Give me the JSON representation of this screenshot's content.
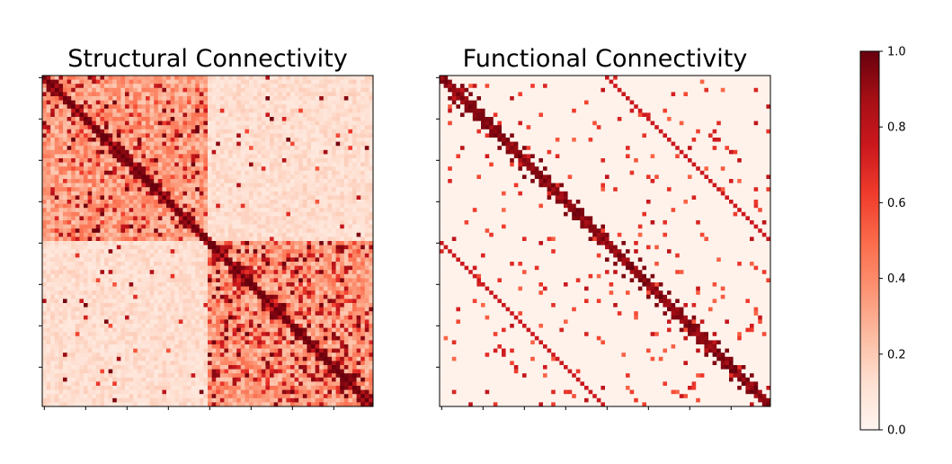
{
  "chart_data": [
    {
      "type": "heatmap",
      "title": "Structural Connectivity",
      "n": 80,
      "vmin": 0.0,
      "vmax": 1.0,
      "colormap": "Reds",
      "x_ticks": 8,
      "y_ticks": 8,
      "tick_labels_shown": false,
      "pattern": "dense two-hemisphere block structure, strongest near diagonal and in lower-right block",
      "highlight_cells": [
        [
          1,
          2
        ],
        [
          1,
          3
        ],
        [
          2,
          4
        ],
        [
          5,
          6
        ],
        [
          6,
          7
        ],
        [
          7,
          9
        ],
        [
          10,
          11
        ],
        [
          12,
          13
        ],
        [
          12,
          15
        ],
        [
          14,
          16
        ],
        [
          16,
          18
        ],
        [
          17,
          19
        ],
        [
          18,
          20
        ],
        [
          20,
          21
        ],
        [
          21,
          23
        ],
        [
          22,
          24
        ],
        [
          25,
          26
        ],
        [
          26,
          28
        ],
        [
          28,
          30
        ],
        [
          30,
          31
        ],
        [
          32,
          33
        ],
        [
          33,
          35
        ],
        [
          34,
          36
        ],
        [
          36,
          37
        ],
        [
          38,
          39
        ],
        [
          41,
          42
        ],
        [
          42,
          44
        ],
        [
          44,
          45
        ],
        [
          45,
          47
        ],
        [
          46,
          48
        ],
        [
          48,
          50
        ],
        [
          50,
          51
        ],
        [
          52,
          53
        ],
        [
          53,
          55
        ],
        [
          55,
          57
        ],
        [
          56,
          58
        ],
        [
          58,
          59
        ],
        [
          60,
          61
        ],
        [
          61,
          63
        ],
        [
          63,
          64
        ],
        [
          64,
          66
        ],
        [
          66,
          68
        ],
        [
          68,
          69
        ],
        [
          69,
          71
        ],
        [
          71,
          72
        ],
        [
          72,
          74
        ],
        [
          73,
          75
        ],
        [
          75,
          76
        ],
        [
          76,
          78
        ],
        [
          77,
          79
        ]
      ]
    },
    {
      "type": "heatmap",
      "title": "Functional Connectivity",
      "n": 80,
      "vmin": 0.0,
      "vmax": 1.0,
      "colormap": "Reds",
      "x_ticks": 8,
      "y_ticks": 8,
      "tick_labels_shown": false,
      "pattern": "sparse, strong diagonal, block patterns in four quadrants",
      "highlight_cells": [
        [
          2,
          5
        ],
        [
          3,
          6
        ],
        [
          4,
          7
        ],
        [
          5,
          9
        ],
        [
          6,
          8
        ],
        [
          8,
          10
        ],
        [
          10,
          12
        ],
        [
          12,
          14
        ],
        [
          14,
          17
        ],
        [
          16,
          18
        ],
        [
          17,
          20
        ],
        [
          19,
          22
        ],
        [
          20,
          24
        ],
        [
          22,
          25
        ],
        [
          24,
          26
        ],
        [
          26,
          29
        ],
        [
          28,
          30
        ],
        [
          30,
          33
        ],
        [
          32,
          34
        ],
        [
          34,
          36
        ],
        [
          36,
          39
        ],
        [
          38,
          40
        ],
        [
          40,
          44
        ],
        [
          42,
          45
        ],
        [
          44,
          48
        ],
        [
          46,
          49
        ],
        [
          48,
          51
        ],
        [
          50,
          53
        ],
        [
          52,
          55
        ],
        [
          54,
          57
        ],
        [
          56,
          58
        ],
        [
          58,
          61
        ],
        [
          60,
          62
        ],
        [
          62,
          64
        ],
        [
          64,
          67
        ],
        [
          66,
          69
        ],
        [
          68,
          70
        ],
        [
          70,
          73
        ],
        [
          72,
          75
        ],
        [
          74,
          76
        ]
      ]
    }
  ],
  "colorbar": {
    "ticks": [
      "0.0",
      "0.2",
      "0.4",
      "0.6",
      "0.8",
      "1.0"
    ],
    "tick_values": [
      0.0,
      0.2,
      0.4,
      0.6,
      0.8,
      1.0
    ],
    "colormap": "Reds"
  }
}
